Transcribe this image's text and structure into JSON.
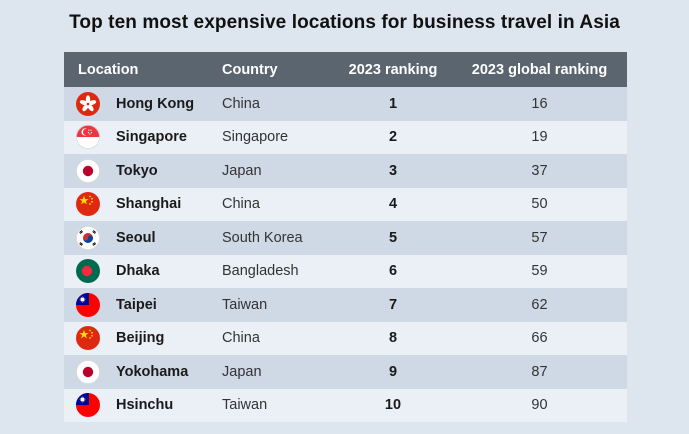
{
  "title": "Top ten most expensive locations for business travel in Asia",
  "headers": {
    "location": "Location",
    "country": "Country",
    "ranking": "2023 ranking",
    "global": "2023 global ranking"
  },
  "chart_data": {
    "type": "table",
    "columns": [
      "Location",
      "Country",
      "2023 ranking",
      "2023 global ranking"
    ],
    "rows": [
      {
        "location": "Hong Kong",
        "country": "China",
        "rank": "1",
        "global": "16",
        "flag": "hong-kong-flag-icon"
      },
      {
        "location": "Singapore",
        "country": "Singapore",
        "rank": "2",
        "global": "19",
        "flag": "singapore-flag-icon"
      },
      {
        "location": "Tokyo",
        "country": "Japan",
        "rank": "3",
        "global": "37",
        "flag": "japan-flag-icon"
      },
      {
        "location": "Shanghai",
        "country": "China",
        "rank": "4",
        "global": "50",
        "flag": "china-flag-icon"
      },
      {
        "location": "Seoul",
        "country": "South Korea",
        "rank": "5",
        "global": "57",
        "flag": "south-korea-flag-icon"
      },
      {
        "location": "Dhaka",
        "country": "Bangladesh",
        "rank": "6",
        "global": "59",
        "flag": "bangladesh-flag-icon"
      },
      {
        "location": "Taipei",
        "country": "Taiwan",
        "rank": "7",
        "global": "62",
        "flag": "taiwan-flag-icon"
      },
      {
        "location": "Beijing",
        "country": "China",
        "rank": "8",
        "global": "66",
        "flag": "china-flag-icon"
      },
      {
        "location": "Yokohama",
        "country": "Japan",
        "rank": "9",
        "global": "87",
        "flag": "japan-flag-icon"
      },
      {
        "location": "Hsinchu",
        "country": "Taiwan",
        "rank": "10",
        "global": "90",
        "flag": "taiwan-flag-icon"
      }
    ]
  },
  "colors": {
    "header_bg": "#5b6570",
    "row_odd": "#cfd9e6",
    "row_even": "#eaf0f6",
    "page_bg": "#dde5ee"
  }
}
